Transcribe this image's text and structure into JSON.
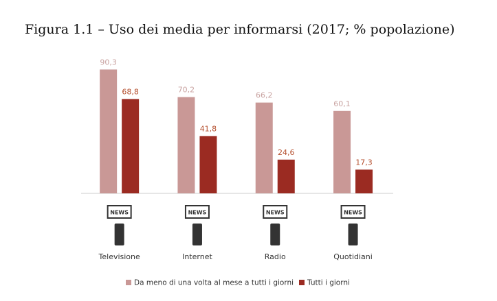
{
  "chart_data": {
    "type": "bar",
    "title": "Figura 1.1 – Uso dei media per informarsi (2017; % popolazione)",
    "categories": [
      "Televisione",
      "Internet",
      "Radio",
      "Quotidiani"
    ],
    "icon_text": "NEWS",
    "series": [
      {
        "name": "Da meno di una volta al mese a tutti i giorni",
        "color": "#c99896",
        "label_color": "#c9a3a1",
        "values": [
          90.3,
          70.2,
          66.2,
          60.1
        ],
        "value_labels": [
          "90,3",
          "70,2",
          "66,2",
          "60,1"
        ]
      },
      {
        "name": "Tutti i giorni",
        "color": "#9b2b22",
        "label_color": "#b5502f",
        "values": [
          68.8,
          41.8,
          24.6,
          17.3
        ],
        "value_labels": [
          "68,8",
          "41,8",
          "24,6",
          "17,3"
        ]
      }
    ],
    "legend": "bottom"
  }
}
